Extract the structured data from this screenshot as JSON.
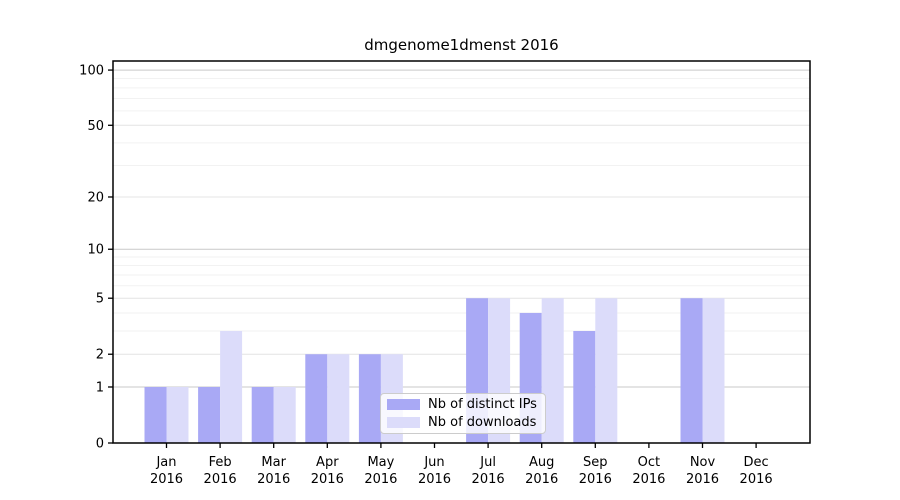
{
  "chart_data": {
    "type": "bar",
    "title": "dmgenome1dmenst 2016",
    "year": "2016",
    "categories": [
      "Jan",
      "Feb",
      "Mar",
      "Apr",
      "May",
      "Jun",
      "Jul",
      "Aug",
      "Sep",
      "Oct",
      "Nov",
      "Dec"
    ],
    "series": [
      {
        "name": "Nb of distinct IPs",
        "color": "#a9a9f5",
        "values": [
          1,
          1,
          1,
          2,
          2,
          0,
          5,
          4,
          3,
          0,
          5,
          0
        ]
      },
      {
        "name": "Nb of downloads",
        "color": "#dcdcfa",
        "values": [
          1,
          3,
          1,
          2,
          2,
          0,
          5,
          5,
          5,
          0,
          5,
          0
        ]
      }
    ],
    "yscale": "log1p",
    "ylim": [
      0,
      112
    ],
    "y_major_ticks": [
      0,
      1,
      2,
      5,
      10,
      20,
      50,
      100
    ],
    "y_minor_gridlines": [
      3,
      4,
      6,
      7,
      8,
      9,
      30,
      40,
      60,
      70,
      80,
      90
    ],
    "grid": "on",
    "legend_position": "lower-center",
    "xlabel": "",
    "ylabel": "",
    "colors": {
      "grid_major": "#e4e4e4",
      "grid_minor": "#f2f2f2",
      "grid_decade": "#c9c9c9",
      "axis": "#000000",
      "background": "#ffffff"
    }
  }
}
